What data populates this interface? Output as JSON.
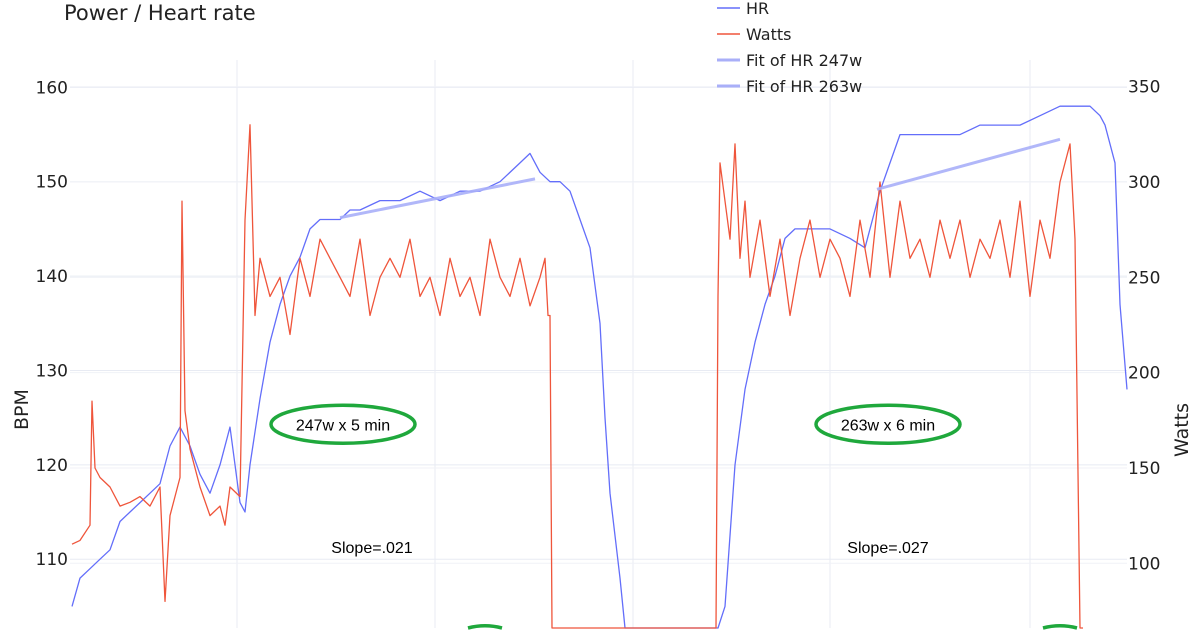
{
  "chart_data": {
    "type": "line",
    "title": "Power / Heart rate",
    "ylabel": "BPM",
    "y2label": "Watts",
    "ylim": [
      102.5,
      162.9
    ],
    "y2lim": [
      65,
      364
    ],
    "xlim": [
      0,
      1057
    ],
    "yticks": [
      110,
      120,
      130,
      140,
      150,
      160
    ],
    "y2ticks": [
      100,
      150,
      200,
      250,
      300,
      350
    ],
    "grid": true,
    "legend_position": "top-right",
    "colors": {
      "hr": "#636efa",
      "watts": "#ef553b",
      "fit": "#a9aff8",
      "annotation": "#1fa83c"
    },
    "series": [
      {
        "name": "HR",
        "axis": "left",
        "x": [
          2,
          10,
          20,
          30,
          40,
          50,
          60,
          70,
          80,
          90,
          100,
          110,
          120,
          130,
          140,
          150,
          160,
          170,
          175,
          180,
          190,
          200,
          210,
          220,
          230,
          240,
          250,
          260,
          270,
          280,
          290,
          310,
          330,
          350,
          370,
          390,
          410,
          430,
          450,
          460,
          470,
          480,
          490,
          500,
          510,
          520,
          530,
          535,
          540,
          550,
          555,
          645,
          648,
          655,
          665,
          675,
          685,
          695,
          705,
          715,
          725,
          740,
          760,
          780,
          795,
          810,
          820,
          830,
          850,
          870,
          890,
          910,
          930,
          950,
          970,
          990,
          1010,
          1020,
          1030,
          1035,
          1045,
          1050,
          1057
        ],
        "y": [
          105,
          108,
          109,
          110,
          111,
          114,
          115,
          116,
          117,
          118,
          122,
          124,
          122,
          119,
          117,
          120,
          124,
          116,
          115,
          120,
          127,
          133,
          137,
          140,
          142,
          145,
          146,
          146,
          146,
          147,
          147,
          148,
          148,
          149,
          148,
          149,
          149,
          150,
          152,
          153,
          151,
          150,
          150,
          149,
          146,
          143,
          135,
          125,
          117,
          108,
          100,
          100,
          102,
          105,
          120,
          128,
          133,
          137,
          140,
          144,
          145,
          145,
          145,
          144,
          143,
          149,
          152,
          155,
          155,
          155,
          155,
          156,
          156,
          156,
          157,
          158,
          158,
          158,
          157,
          156,
          152,
          137,
          128
        ]
      },
      {
        "name": "Watts",
        "axis": "right",
        "x": [
          2,
          10,
          20,
          22,
          25,
          30,
          40,
          50,
          60,
          70,
          80,
          90,
          95,
          100,
          110,
          112,
          115,
          120,
          130,
          140,
          150,
          155,
          160,
          170,
          175,
          180,
          185,
          190,
          200,
          210,
          220,
          230,
          240,
          250,
          260,
          270,
          280,
          290,
          300,
          310,
          320,
          330,
          340,
          350,
          360,
          370,
          380,
          390,
          400,
          410,
          420,
          430,
          440,
          450,
          460,
          470,
          475,
          478,
          480,
          482,
          646,
          648,
          650,
          655,
          660,
          665,
          670,
          675,
          680,
          690,
          700,
          710,
          720,
          730,
          740,
          750,
          760,
          770,
          780,
          790,
          800,
          810,
          820,
          830,
          840,
          850,
          860,
          870,
          880,
          890,
          900,
          910,
          920,
          930,
          940,
          950,
          960,
          970,
          980,
          990,
          1000,
          1005,
          1010,
          1013
        ],
        "y": [
          110,
          112,
          120,
          185,
          150,
          145,
          140,
          130,
          132,
          135,
          130,
          140,
          80,
          125,
          145,
          290,
          180,
          160,
          140,
          125,
          130,
          120,
          140,
          135,
          280,
          330,
          230,
          260,
          240,
          250,
          220,
          260,
          240,
          270,
          260,
          250,
          240,
          270,
          230,
          250,
          260,
          250,
          270,
          240,
          250,
          230,
          260,
          240,
          250,
          230,
          270,
          250,
          240,
          260,
          235,
          250,
          260,
          230,
          230,
          50,
          50,
          240,
          310,
          290,
          270,
          320,
          260,
          290,
          250,
          280,
          240,
          270,
          230,
          260,
          280,
          250,
          270,
          260,
          240,
          280,
          250,
          300,
          250,
          290,
          260,
          270,
          250,
          280,
          260,
          280,
          250,
          270,
          260,
          280,
          250,
          290,
          240,
          280,
          260,
          300,
          320,
          270,
          50,
          50
        ]
      },
      {
        "name": "Fit of HR 247w",
        "axis": "left",
        "x": [
          270,
          465
        ],
        "y": [
          146.2,
          150.3
        ]
      },
      {
        "name": "Fit of HR 263w",
        "axis": "left",
        "x": [
          807,
          990
        ],
        "y": [
          149.2,
          154.5
        ]
      }
    ],
    "annotations": [
      {
        "text": "247w x 5 min",
        "circled": true,
        "x": 273,
        "y": 124.3
      },
      {
        "text": "263w x 6 min",
        "circled": true,
        "x": 818,
        "y": 124.3
      },
      {
        "text": "Slope=.021",
        "x": 302,
        "y": 111.3
      },
      {
        "text": "Slope=.027",
        "x": 818,
        "y": 111.3
      }
    ]
  }
}
